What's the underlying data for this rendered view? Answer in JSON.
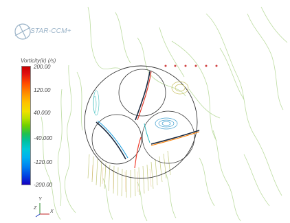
{
  "app": {
    "logo_text": "STAR-CCM+"
  },
  "scalar_bar": {
    "title": "Vorticity(k) (/s)",
    "ticks": [
      "200.00",
      "120.00",
      "40.000",
      "-40.000",
      "-120.00",
      "-200.00"
    ]
  },
  "axes": {
    "y": "Y",
    "z": "Z",
    "x": "X"
  },
  "colors": {
    "outline": "#333333",
    "contour_main": "#b4d88a"
  }
}
